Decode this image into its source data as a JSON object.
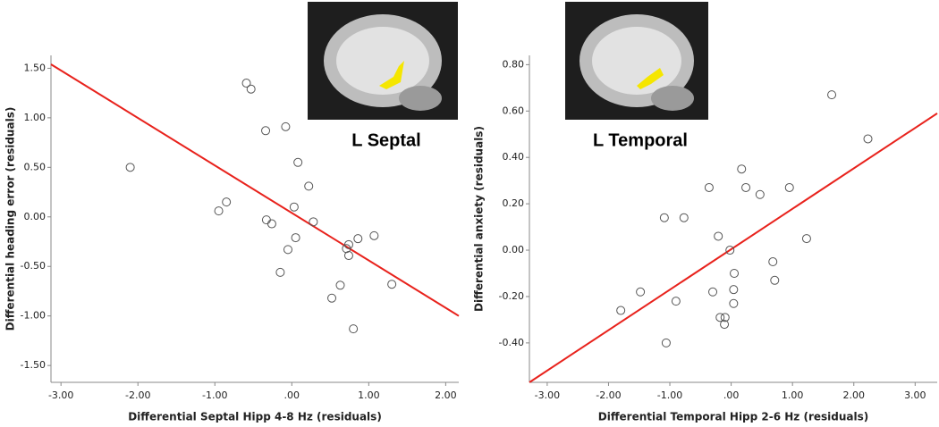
{
  "chart_data": [
    {
      "type": "scatter",
      "x_label": "Differential Septal Hipp 4-8 Hz (residuals)",
      "y_label": "Differential heading error (residuals)",
      "inset_label": "L Septal",
      "x": [
        -2.1,
        -0.95,
        -0.85,
        -0.59,
        -0.53,
        -0.34,
        -0.08,
        0.08,
        0.22,
        -0.33,
        -0.26,
        0.03,
        0.28,
        0.05,
        -0.05,
        -0.15,
        0.63,
        0.52,
        0.71,
        0.74,
        0.74,
        0.86,
        1.07,
        1.3,
        0.8
      ],
      "series": [
        {
          "color": "#555555",
          "values": [
            0.5,
            0.06,
            0.15,
            1.35,
            1.29,
            0.87,
            0.91,
            0.55,
            0.31,
            -0.03,
            -0.07,
            0.1,
            -0.05,
            -0.21,
            -0.33,
            -0.56,
            -0.69,
            -0.82,
            -0.32,
            -0.28,
            -0.39,
            -0.22,
            -0.19,
            -0.68,
            -1.13
          ]
        }
      ],
      "fit": {
        "color": "#e8221c",
        "x": [
          -3.13,
          2.17
        ],
        "values": [
          1.54,
          -1.0
        ]
      },
      "xlim": [
        -3.13,
        2.17
      ],
      "ylim": [
        -1.67,
        1.63
      ],
      "xticks": [
        {
          "value": -3,
          "label": "-3.00"
        },
        {
          "value": -2,
          "label": "-2.00"
        },
        {
          "value": -1,
          "label": "-1.00"
        },
        {
          "value": 0,
          "label": ".00"
        },
        {
          "value": 1,
          "label": "1.00"
        },
        {
          "value": 2,
          "label": "2.00"
        }
      ],
      "yticks": [
        {
          "value": 1.5,
          "label": "1.50"
        },
        {
          "value": 1,
          "label": "1.00"
        },
        {
          "value": 0.5,
          "label": "0.50"
        },
        {
          "value": 0,
          "label": "0.00"
        },
        {
          "value": -0.5,
          "label": "-0.50"
        },
        {
          "value": -1,
          "label": "-1.00"
        },
        {
          "value": -1.5,
          "label": "-1.50"
        }
      ]
    },
    {
      "type": "scatter",
      "x_label": "Differential Temporal Hipp 2-6 Hz (residuals)",
      "y_label": "Differential anxiety (residuals)",
      "inset_label": "L Temporal",
      "x": [
        -1.8,
        -1.48,
        -1.09,
        -0.9,
        -0.77,
        -1.06,
        -0.36,
        -0.3,
        -0.21,
        -0.18,
        -0.1,
        -0.11,
        -0.02,
        0.05,
        0.04,
        0.04,
        0.17,
        0.24,
        0.47,
        0.68,
        0.71,
        0.95,
        1.23,
        1.64,
        2.23
      ],
      "series": [
        {
          "color": "#555555",
          "values": [
            -0.26,
            -0.18,
            0.14,
            -0.22,
            0.14,
            -0.4,
            0.27,
            -0.18,
            0.06,
            -0.29,
            -0.29,
            -0.32,
            0.0,
            -0.1,
            -0.17,
            -0.23,
            0.35,
            0.27,
            0.24,
            -0.05,
            -0.13,
            0.27,
            0.05,
            0.67,
            0.48
          ]
        }
      ],
      "fit": {
        "color": "#e8221c",
        "x": [
          -3.29,
          3.36
        ],
        "values": [
          -0.57,
          0.59
        ]
      },
      "xlim": [
        -3.29,
        3.36
      ],
      "ylim": [
        -0.57,
        0.84
      ],
      "xticks": [
        {
          "value": -3,
          "label": "-3.00"
        },
        {
          "value": -2,
          "label": "-2.00"
        },
        {
          "value": -1,
          "label": "-1.00"
        },
        {
          "value": 0,
          "label": ".00"
        },
        {
          "value": 1,
          "label": "1.00"
        },
        {
          "value": 2,
          "label": "2.00"
        },
        {
          "value": 3,
          "label": "3.00"
        }
      ],
      "yticks": [
        {
          "value": 0.8,
          "label": "0.80"
        },
        {
          "value": 0.6,
          "label": "0.60"
        },
        {
          "value": 0.4,
          "label": "0.40"
        },
        {
          "value": 0.2,
          "label": "0.20"
        },
        {
          "value": 0,
          "label": "0.00"
        },
        {
          "value": -0.2,
          "label": "-0.20"
        },
        {
          "value": -0.4,
          "label": "-0.40"
        }
      ]
    }
  ]
}
